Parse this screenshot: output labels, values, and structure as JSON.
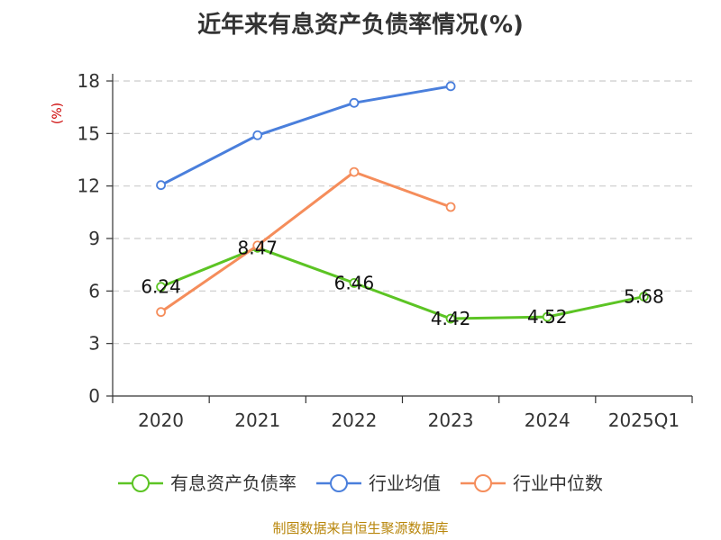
{
  "chart_data": {
    "type": "line",
    "title": "近年来有息资产负债率情况(%)",
    "ylabel": "(%)",
    "categories": [
      "2020",
      "2021",
      "2022",
      "2023",
      "2024",
      "2025Q1"
    ],
    "yticks": [
      "0",
      "3",
      "6",
      "9",
      "12",
      "15",
      "18"
    ],
    "ylim": [
      0,
      18
    ],
    "grid": true,
    "legend_position": "bottom",
    "series": [
      {
        "name": "有息资产负债率",
        "color": "#5cc424",
        "values": [
          6.24,
          8.47,
          6.46,
          4.42,
          4.52,
          5.68
        ],
        "labels": [
          "6.24",
          "8.47",
          "6.46",
          "4.42",
          "4.52",
          "5.68"
        ]
      },
      {
        "name": "行业均值",
        "color": "#4a7fdc",
        "values": [
          12.05,
          14.9,
          16.75,
          17.7,
          null,
          null
        ]
      },
      {
        "name": "行业中位数",
        "color": "#f58d5b",
        "values": [
          4.8,
          8.6,
          12.8,
          10.8,
          null,
          null
        ]
      }
    ]
  },
  "source": "制图数据来自恒生聚源数据库"
}
